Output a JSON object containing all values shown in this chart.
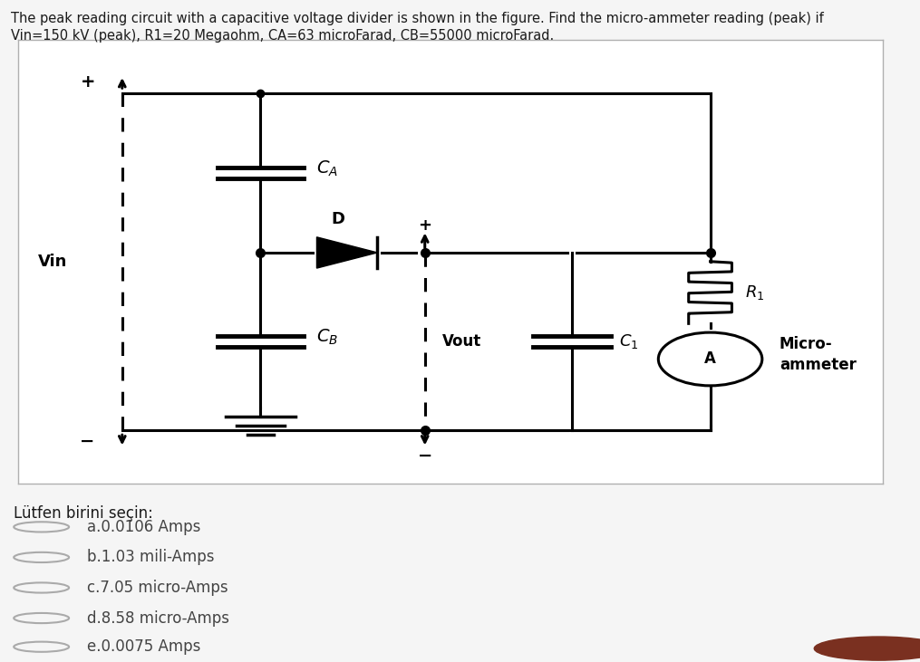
{
  "bg_color": "#f5f5f5",
  "circuit_bg": "#ffffff",
  "border_color": "#cccccc",
  "title_line1": "The peak reading circuit with a capacitive voltage divider is shown in the figure. Find the micro-ammeter reading (peak) if",
  "title_line2": "Vin=150 kV (peak), R1=20 Megaohm, CA=63 microFarad, CB=55000 microFarad.",
  "question_text": "Lütfen birini seçin:",
  "choices": [
    "a.0.0106 Amps",
    "b.1.03 mili-Amps",
    "c.7.05 micro-Amps",
    "d.8.58 micro-Amps",
    "e.0.0075 Amps"
  ],
  "title_fontsize": 10.5,
  "choice_fontsize": 12,
  "question_fontsize": 12,
  "line_color": "#000000",
  "text_color": "#1a1a1a",
  "choice_color": "#444444",
  "radio_color": "#aaaaaa",
  "circuit_border": "#b0b0b0",
  "brown_btn": "#7a3020"
}
